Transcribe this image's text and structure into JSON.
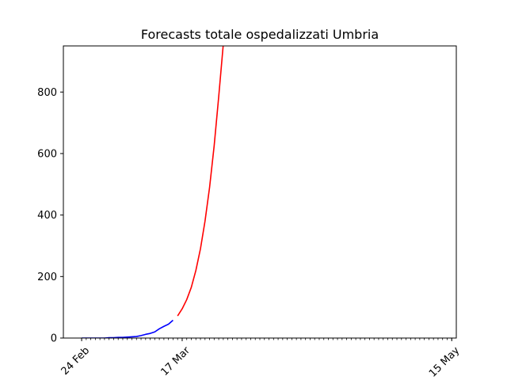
{
  "chart_data": {
    "type": "line",
    "title": "Forecasts totale ospedalizzati Umbria",
    "xlabel": "",
    "ylabel": "",
    "x_axis": {
      "type": "date",
      "range": [
        "2020-02-20",
        "2020-05-16"
      ],
      "tick_labels": [
        {
          "date": "2020-02-24",
          "label": "24 Feb"
        },
        {
          "date": "2020-03-17",
          "label": "17 Mar"
        },
        {
          "date": "2020-05-15",
          "label": "15 May"
        }
      ],
      "minor_ticks": "daily",
      "label_rotation": 45
    },
    "y_axis": {
      "range": [
        0,
        950
      ],
      "ticks": [
        0,
        200,
        400,
        600,
        800
      ]
    },
    "grid": false,
    "legend": "none",
    "series": [
      {
        "color": "#0000ff",
        "points": [
          [
            "2020-02-24",
            0
          ],
          [
            "2020-02-25",
            0
          ],
          [
            "2020-02-26",
            0
          ],
          [
            "2020-02-27",
            0
          ],
          [
            "2020-02-28",
            0
          ],
          [
            "2020-02-29",
            0
          ],
          [
            "2020-03-01",
            1
          ],
          [
            "2020-03-02",
            1
          ],
          [
            "2020-03-03",
            2
          ],
          [
            "2020-03-04",
            2
          ],
          [
            "2020-03-05",
            3
          ],
          [
            "2020-03-06",
            4
          ],
          [
            "2020-03-07",
            5
          ],
          [
            "2020-03-08",
            8
          ],
          [
            "2020-03-09",
            12
          ],
          [
            "2020-03-10",
            15
          ],
          [
            "2020-03-11",
            20
          ],
          [
            "2020-03-12",
            30
          ],
          [
            "2020-03-13",
            38
          ],
          [
            "2020-03-14",
            45
          ],
          [
            "2020-03-15",
            58
          ]
        ]
      },
      {
        "color": "#ff0000",
        "points": [
          [
            "2020-03-16",
            72
          ],
          [
            "2020-03-17",
            95
          ],
          [
            "2020-03-18",
            125
          ],
          [
            "2020-03-19",
            165
          ],
          [
            "2020-03-20",
            220
          ],
          [
            "2020-03-21",
            290
          ],
          [
            "2020-03-22",
            380
          ],
          [
            "2020-03-23",
            490
          ],
          [
            "2020-03-24",
            625
          ],
          [
            "2020-03-25",
            785
          ],
          [
            "2020-03-26",
            955
          ]
        ]
      }
    ]
  }
}
